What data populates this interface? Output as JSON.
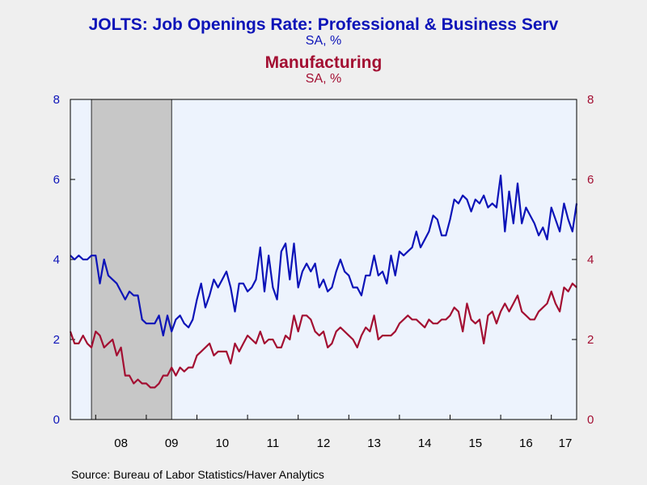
{
  "titles": {
    "series1_title": "JOLTS: Job Openings Rate: Professional & Business Serv",
    "series1_unit": "SA, %",
    "series2_title": "Manufacturing",
    "series2_unit": "SA, %"
  },
  "source": "Source:  Bureau of Labor Statistics/Haver Analytics",
  "colors": {
    "series1": "#0d14b8",
    "series2": "#a30f32",
    "plot_bg": "#edf3fd",
    "recession": "#c7c7c7",
    "page_bg": "#efefef"
  },
  "chart_data": {
    "type": "line",
    "title": "JOLTS: Job Openings Rate: Professional & Business Serv",
    "xlabel": "",
    "ylabel_left": "",
    "ylabel_right": "",
    "x_start": "2007-07",
    "x_frequency": "monthly",
    "xlim": [
      "2007-07",
      "2017-07"
    ],
    "x_ticks": [
      "08",
      "09",
      "10",
      "11",
      "12",
      "13",
      "14",
      "15",
      "16",
      "17"
    ],
    "y_left_lim": [
      0,
      8
    ],
    "y_right_lim": [
      0,
      8
    ],
    "y_left_ticks": [
      "0",
      "2",
      "4",
      "6",
      "8"
    ],
    "y_right_ticks": [
      "0",
      "2",
      "4",
      "6",
      "8"
    ],
    "grid": false,
    "legend": "none",
    "shaded_periods": [
      {
        "start": "2007-12",
        "end": "2009-06",
        "label": "recession"
      }
    ],
    "series": [
      {
        "name": "JOLTS: Job Openings Rate: Professional & Business Serv",
        "axis": "left",
        "values": [
          4.1,
          4.0,
          4.1,
          4.0,
          4.0,
          4.1,
          4.1,
          3.4,
          4.0,
          3.6,
          3.5,
          3.4,
          3.2,
          3.0,
          3.2,
          3.1,
          3.1,
          2.5,
          2.4,
          2.4,
          2.4,
          2.6,
          2.1,
          2.6,
          2.2,
          2.5,
          2.6,
          2.4,
          2.3,
          2.5,
          3.0,
          3.4,
          2.8,
          3.1,
          3.5,
          3.3,
          3.5,
          3.7,
          3.3,
          2.7,
          3.4,
          3.4,
          3.2,
          3.3,
          3.5,
          4.3,
          3.2,
          4.1,
          3.3,
          3.0,
          4.2,
          4.4,
          3.5,
          4.4,
          3.3,
          3.7,
          3.9,
          3.7,
          3.9,
          3.3,
          3.5,
          3.2,
          3.3,
          3.7,
          4.0,
          3.7,
          3.6,
          3.3,
          3.3,
          3.1,
          3.6,
          3.6,
          4.1,
          3.6,
          3.7,
          3.4,
          4.1,
          3.6,
          4.2,
          4.1,
          4.2,
          4.3,
          4.7,
          4.3,
          4.5,
          4.7,
          5.1,
          5.0,
          4.6,
          4.6,
          5.0,
          5.5,
          5.4,
          5.6,
          5.5,
          5.2,
          5.5,
          5.4,
          5.6,
          5.3,
          5.4,
          5.3,
          6.1,
          4.7,
          5.7,
          4.9,
          5.9,
          4.9,
          5.3,
          5.1,
          4.9,
          4.6,
          4.8,
          4.5,
          5.3,
          5.0,
          4.7,
          5.4,
          5.0,
          4.7,
          5.4
        ]
      },
      {
        "name": "Manufacturing",
        "axis": "right",
        "values": [
          2.2,
          1.9,
          1.9,
          2.1,
          1.9,
          1.8,
          2.2,
          2.1,
          1.8,
          1.9,
          2.0,
          1.6,
          1.8,
          1.1,
          1.1,
          0.9,
          1.0,
          0.9,
          0.9,
          0.8,
          0.8,
          0.9,
          1.1,
          1.1,
          1.3,
          1.1,
          1.3,
          1.2,
          1.3,
          1.3,
          1.6,
          1.7,
          1.8,
          1.9,
          1.6,
          1.7,
          1.7,
          1.7,
          1.4,
          1.9,
          1.7,
          1.9,
          2.1,
          2.0,
          1.9,
          2.2,
          1.9,
          2.0,
          2.0,
          1.8,
          1.8,
          2.1,
          2.0,
          2.6,
          2.2,
          2.6,
          2.6,
          2.5,
          2.2,
          2.1,
          2.2,
          1.8,
          1.9,
          2.2,
          2.3,
          2.2,
          2.1,
          2.0,
          1.8,
          2.1,
          2.3,
          2.2,
          2.6,
          2.0,
          2.1,
          2.1,
          2.1,
          2.2,
          2.4,
          2.5,
          2.6,
          2.5,
          2.5,
          2.4,
          2.3,
          2.5,
          2.4,
          2.4,
          2.5,
          2.5,
          2.6,
          2.8,
          2.7,
          2.2,
          2.9,
          2.5,
          2.4,
          2.5,
          1.9,
          2.6,
          2.7,
          2.4,
          2.7,
          2.9,
          2.7,
          2.9,
          3.1,
          2.7,
          2.6,
          2.5,
          2.5,
          2.7,
          2.8,
          2.9,
          3.2,
          2.9,
          2.7,
          3.3,
          3.2,
          3.4,
          3.3
        ]
      }
    ]
  }
}
